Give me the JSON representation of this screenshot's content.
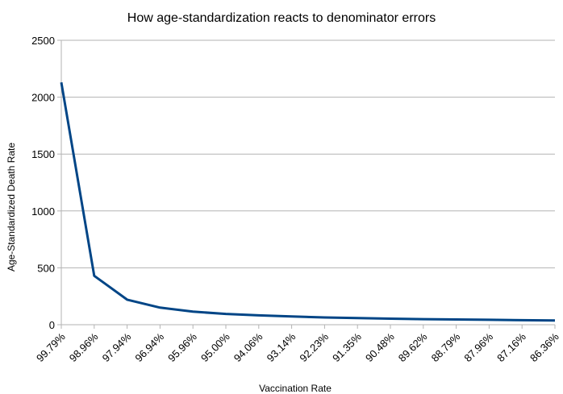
{
  "chart_data": {
    "type": "line",
    "title": "How age-standardization reacts to denominator errors",
    "xlabel": "Vaccination Rate",
    "ylabel": "Age-Standardized Death Rate",
    "ylim": [
      0,
      2500
    ],
    "yticks": [
      "0",
      "500",
      "1000",
      "1500",
      "2000",
      "2500"
    ],
    "grid": true,
    "legend": "none",
    "line_color": "#004586",
    "categories": [
      "99.79%",
      "98.96%",
      "97.94%",
      "96.94%",
      "95.96%",
      "95.00%",
      "94.06%",
      "93.14%",
      "92.23%",
      "91.35%",
      "90.48%",
      "89.62%",
      "88.79%",
      "87.96%",
      "87.16%",
      "86.36%"
    ],
    "values": [
      2130,
      430,
      220,
      150,
      115,
      95,
      82,
      72,
      64,
      58,
      53,
      49,
      46,
      43,
      40,
      37
    ]
  }
}
